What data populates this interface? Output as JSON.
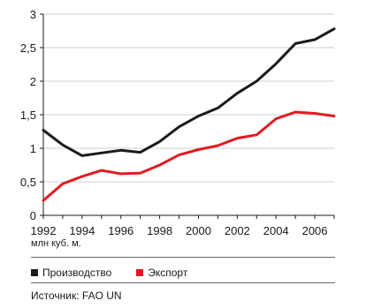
{
  "chart_data": {
    "type": "line",
    "x": [
      1992,
      1993,
      1994,
      1995,
      1996,
      1997,
      1998,
      1999,
      2000,
      2001,
      2002,
      2003,
      2004,
      2005,
      2006,
      2007
    ],
    "x_ticks": [
      "1992",
      "1994",
      "1996",
      "1998",
      "2000",
      "2002",
      "2004",
      "2006"
    ],
    "y_ticks": [
      "0",
      "0.5",
      "1",
      "1.5",
      "2",
      "2.5",
      "3"
    ],
    "ylim": [
      0,
      3
    ],
    "xlim": [
      1992,
      2007
    ],
    "grid": "horizontal",
    "series": [
      {
        "name": "Производство",
        "color": "#1a1a1a",
        "values": [
          1.27,
          1.05,
          0.89,
          0.93,
          0.97,
          0.94,
          1.1,
          1.32,
          1.48,
          1.6,
          1.82,
          2.0,
          2.26,
          2.56,
          2.62,
          2.78
        ]
      },
      {
        "name": "Экспорт",
        "color": "#e11b22",
        "values": [
          0.22,
          0.47,
          0.58,
          0.67,
          0.62,
          0.63,
          0.75,
          0.9,
          0.98,
          1.04,
          1.15,
          1.2,
          1.44,
          1.54,
          1.52,
          1.48
        ]
      }
    ]
  },
  "unit_label": "млн куб. м.",
  "source_text": "Источник: FAO UN"
}
